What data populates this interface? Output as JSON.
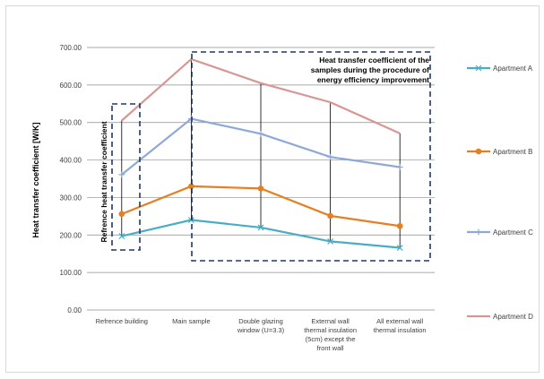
{
  "chart_data": {
    "type": "line",
    "ylabel": "Heat transfer coefficient [W/K]",
    "xlabel": "",
    "ylim": [
      0,
      700
    ],
    "yticks": [
      "0.00",
      "100.00",
      "200.00",
      "300.00",
      "400.00",
      "500.00",
      "600.00",
      "700.00"
    ],
    "grid": "horizontal",
    "legend_position": "right",
    "categories": [
      [
        "Refrence building"
      ],
      [
        "Main sample"
      ],
      [
        "Double glazing",
        "window (U=3.3)"
      ],
      [
        "External wall",
        "thermal insulation",
        "(5cm) except the",
        "front wall"
      ],
      [
        "All external wall",
        "thermal insulation"
      ]
    ],
    "series": [
      {
        "name": "Apartment A",
        "color": "#4bacc6",
        "marker": "x",
        "values": [
          197,
          240,
          220,
          183,
          166
        ]
      },
      {
        "name": "Apartment B",
        "color": "#e67e22",
        "marker": "circle",
        "values": [
          256,
          330,
          324,
          251,
          224
        ]
      },
      {
        "name": "Apartment C",
        "color": "#8fa8d8",
        "marker": "plus",
        "values": [
          361,
          510,
          470,
          408,
          381
        ]
      },
      {
        "name": "Apartment D",
        "color": "#d99594",
        "marker": "none",
        "values": [
          505,
          669,
          605,
          554,
          471
        ]
      }
    ],
    "annotations": {
      "left_box": "Refrence heat transfer coefficient",
      "right_box": [
        "Heat transfer coefficient of the",
        "samples during the procedure of",
        "energy efficiency improvement"
      ]
    }
  }
}
